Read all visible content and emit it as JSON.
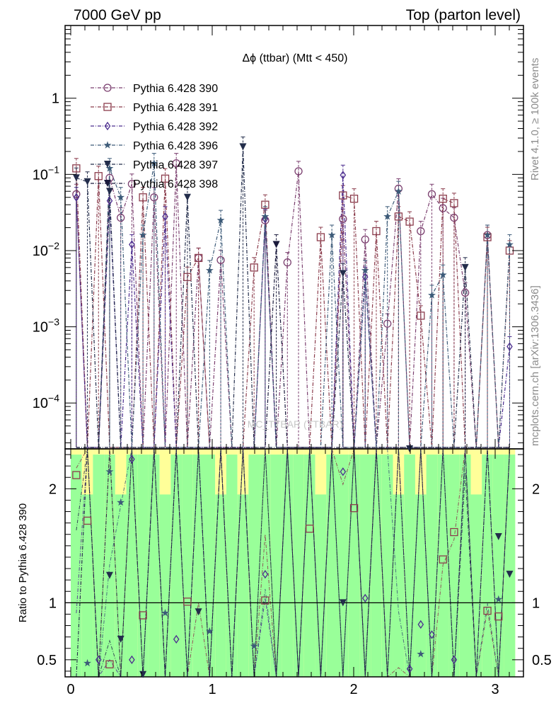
{
  "header": {
    "left": "7000 GeV pp",
    "right": "Top (parton level)"
  },
  "side": {
    "rivet": "Rivet 4.1.0, ≥ 100k events",
    "mcplots": "mcplots.cern.ch [arXiv:1306.3436]"
  },
  "chart_data": {
    "type": "line",
    "title": "Δϕ (ttbar) (Mtt < 450)",
    "watermark": "MC_TTBAR (TTBAR)",
    "upper_panel": {
      "yscale": "log",
      "ylim": [
        2.5e-05,
        9
      ],
      "yticks": [
        {
          "v": 0.0001,
          "label": "10^-4"
        },
        {
          "v": 0.001,
          "label": "10^-3"
        },
        {
          "v": 0.01,
          "label": "10^-2"
        },
        {
          "v": 0.1,
          "label": "10^-1"
        },
        {
          "v": 1,
          "label": "1"
        }
      ]
    },
    "ratio_panel": {
      "ylabel": "Ratio to Pythia 6.428 390",
      "ylim": [
        0.35,
        2.35
      ],
      "yticks": [
        0.5,
        1,
        2
      ],
      "reference_line": 1
    },
    "x": {
      "lim": [
        -0.04,
        3.2
      ],
      "ticks": [
        0,
        1,
        2,
        3
      ]
    },
    "bins": [
      0.0393,
      0.1178,
      0.1963,
      0.2749,
      0.3534,
      0.432,
      0.5105,
      0.589,
      0.6676,
      0.7461,
      0.8247,
      0.9032,
      0.9817,
      1.0603,
      1.1388,
      1.2174,
      1.2959,
      1.3744,
      1.453,
      1.5315,
      1.6101,
      1.6886,
      1.7671,
      1.8457,
      1.9242,
      2.0028,
      2.0813,
      2.1598,
      2.2384,
      2.3169,
      2.3955,
      2.474,
      2.5525,
      2.6311,
      2.7096,
      2.7882,
      2.8667,
      2.9452,
      3.0238,
      3.1023
    ],
    "series": [
      {
        "name": "Pythia 6.428 390",
        "color": "#7b3f6f",
        "marker": "circle-open",
        "values": [
          0.055,
          0.0,
          0.0,
          0.09,
          0.027,
          0.075,
          0.0,
          0.05,
          0.0,
          0.14,
          0.0,
          0.008,
          0.0,
          0.0075,
          0.0,
          0.0,
          0.0,
          0.025,
          0.0,
          0.007,
          0.11,
          0.0,
          0.0,
          0.0,
          0.026,
          0.0,
          0.014,
          0.0,
          0.0011,
          0.065,
          0.0,
          0.018,
          0.055,
          0.036,
          0.027,
          0.0028,
          0.0,
          0.016,
          0.0,
          0.0
        ]
      },
      {
        "name": "Pythia 6.428 391",
        "color": "#8b3c4c",
        "marker": "square-open",
        "values": [
          0.12,
          0.0,
          0.095,
          0.0,
          0.0,
          0.0,
          0.05,
          0.0,
          0.088,
          0.0,
          0.0045,
          0.008,
          0.0,
          0.0,
          0.0,
          0.0,
          0.006,
          0.04,
          0.0,
          0.0,
          0.0,
          0.0,
          0.015,
          0.0,
          0.053,
          0.048,
          0.0,
          0.018,
          0.0,
          0.028,
          0.024,
          0.0014,
          0.0,
          0.048,
          0.042,
          0.0,
          0.0,
          0.015,
          0.0,
          0.01
        ]
      },
      {
        "name": "Pythia 6.428 392",
        "color": "#4b2c8e",
        "marker": "diamond-open",
        "values": [
          0.05,
          0.0,
          0.0,
          0.045,
          0.0,
          0.012,
          0.0,
          0.0,
          0.028,
          0.0,
          0.0,
          0.0,
          0.0,
          0.0,
          0.0,
          0.0,
          0.0,
          0.026,
          0.0,
          0.0,
          0.0,
          0.0,
          0.0,
          0.0,
          0.098,
          0.0,
          0.0045,
          0.0,
          0.0,
          0.0,
          0.0,
          0.0,
          0.0,
          0.0,
          0.0,
          0.0,
          0.0,
          0.0,
          0.0,
          0.00055
        ]
      },
      {
        "name": "Pythia 6.428 396",
        "color": "#3c5a78",
        "marker": "star",
        "values": [
          0.0,
          0.0,
          0.0,
          0.12,
          0.05,
          0.0,
          0.016,
          0.14,
          0.0,
          0.0,
          0.0,
          0.0,
          0.0055,
          0.025,
          0.0,
          0.0,
          0.0,
          0.028,
          0.0,
          0.0,
          0.0,
          0.0,
          0.0,
          0.016,
          0.0,
          0.0,
          0.0055,
          0.0,
          0.028,
          0.06,
          0.0,
          0.0,
          0.0026,
          0.0048,
          0.0,
          0.0,
          0.0,
          0.016,
          0.0,
          0.012
        ]
      },
      {
        "name": "Pythia 6.428 397",
        "color": "#232d4b",
        "marker": "triangle-down",
        "values": [
          0.09,
          0.08,
          0.0,
          0.06,
          0.0,
          0.0,
          0.0,
          0.0,
          0.0,
          0.0,
          0.05,
          0.0,
          0.0,
          0.0,
          0.0,
          0.23,
          0.0,
          0.0,
          0.0,
          0.0,
          0.0,
          0.0,
          0.0,
          0.0,
          0.005,
          0.0,
          0.0,
          0.0,
          0.0,
          0.0,
          0.0,
          0.0,
          0.0,
          0.0,
          0.0,
          0.006,
          0.0,
          0.0,
          0.0,
          0.0
        ]
      },
      {
        "name": "Pythia 6.428 398",
        "color": "#1a1a3c",
        "marker": "triangle-down",
        "values": [
          0.0,
          0.0,
          0.0,
          0.0,
          0.0,
          0.0,
          0.0,
          0.0,
          0.0,
          0.0,
          0.0,
          0.0,
          0.0,
          0.0,
          0.0,
          0.0,
          0.0,
          0.0,
          0.012,
          0.0,
          0.0,
          0.0,
          0.0,
          0.0,
          0.0,
          0.0,
          0.0,
          0.0,
          0.0,
          0.0,
          0.0,
          0.0,
          0.0,
          0.0,
          0.0,
          0.0,
          0.0,
          0.0,
          0.0,
          0.0
        ]
      }
    ],
    "ratio_points": [
      {
        "series": 1,
        "x": 0.0393,
        "y": 2.12
      },
      {
        "series": 1,
        "x": 0.1178,
        "y": 1.72
      },
      {
        "series": 3,
        "x": 0.1178,
        "y": 0.47
      },
      {
        "series": 2,
        "x": 0.1963,
        "y": 0.5
      },
      {
        "series": 3,
        "x": 0.2749,
        "y": 2.15
      },
      {
        "series": 4,
        "x": 0.2749,
        "y": 1.24
      },
      {
        "series": 1,
        "x": 0.2749,
        "y": 0.46
      },
      {
        "series": 3,
        "x": 0.3534,
        "y": 1.88
      },
      {
        "series": 4,
        "x": 0.3534,
        "y": 0.68
      },
      {
        "series": 2,
        "x": 0.432,
        "y": 0.5
      },
      {
        "series": 2,
        "x": 0.432,
        "y": 2.26
      },
      {
        "series": 1,
        "x": 0.5105,
        "y": 0.89
      },
      {
        "series": 4,
        "x": 0.5105,
        "y": 0.37
      },
      {
        "series": 3,
        "x": 0.6676,
        "y": 0.91
      },
      {
        "series": 2,
        "x": 0.7461,
        "y": 0.68
      },
      {
        "series": 1,
        "x": 0.8247,
        "y": 1.01
      },
      {
        "series": 4,
        "x": 0.9032,
        "y": 0.92
      },
      {
        "series": 3,
        "x": 0.9817,
        "y": 0.75
      },
      {
        "series": 3,
        "x": 1.2959,
        "y": 0.62
      },
      {
        "series": 2,
        "x": 1.3744,
        "y": 1.25
      },
      {
        "series": 1,
        "x": 1.3744,
        "y": 1.02
      },
      {
        "series": 1,
        "x": 1.6886,
        "y": 1.65
      },
      {
        "series": 4,
        "x": 1.9242,
        "y": 1.0
      },
      {
        "series": 2,
        "x": 1.9242,
        "y": 2.15
      },
      {
        "series": 1,
        "x": 2.0028,
        "y": 1.83
      },
      {
        "series": 2,
        "x": 2.0813,
        "y": 1.04
      },
      {
        "series": 4,
        "x": 2.3955,
        "y": 2.35
      },
      {
        "series": 2,
        "x": 2.3955,
        "y": 0.42
      },
      {
        "series": 2,
        "x": 2.474,
        "y": 0.81
      },
      {
        "series": 3,
        "x": 2.474,
        "y": 0.55
      },
      {
        "series": 2,
        "x": 2.5525,
        "y": 0.72
      },
      {
        "series": 1,
        "x": 2.6311,
        "y": 1.38
      },
      {
        "series": 1,
        "x": 2.7096,
        "y": 1.62
      },
      {
        "series": 2,
        "x": 2.7096,
        "y": 0.5
      },
      {
        "series": 1,
        "x": 2.9452,
        "y": 0.93
      },
      {
        "series": 1,
        "x": 3.0238,
        "y": 0.88
      },
      {
        "series": 3,
        "x": 3.0238,
        "y": 1.03
      },
      {
        "series": 4,
        "x": 3.0238,
        "y": 1.58
      },
      {
        "series": 4,
        "x": 3.1023,
        "y": 1.25
      }
    ]
  }
}
